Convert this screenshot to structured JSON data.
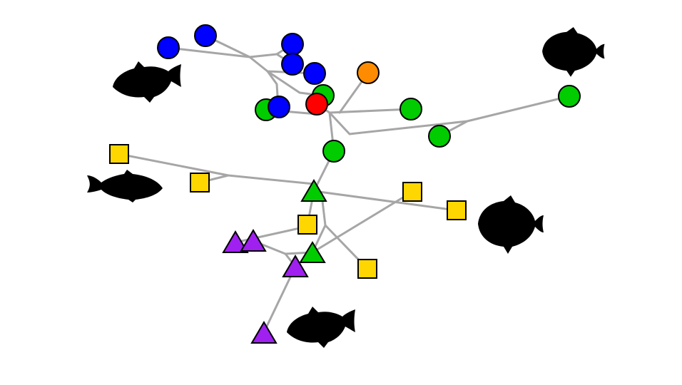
{
  "diagram": {
    "type": "phylogenetic-network",
    "edge_color": "#a6a6a6",
    "node_outline": "#000000",
    "colors": {
      "blue": "#0000ff",
      "green": "#00cc00",
      "orange": "#ff8c00",
      "red": "#ff0000",
      "yellow": "#ffd700",
      "purple": "#a020f0"
    },
    "shape_legend": {
      "circle": "circle-node",
      "square": "square-node",
      "triangle": "triangle-node"
    },
    "silhouettes": [
      "piranha-silhouette-upper-left",
      "discus-silhouette-upper-right",
      "tetra-silhouette-left",
      "discus-silhouette-right",
      "piranha-silhouette-bottom"
    ]
  }
}
